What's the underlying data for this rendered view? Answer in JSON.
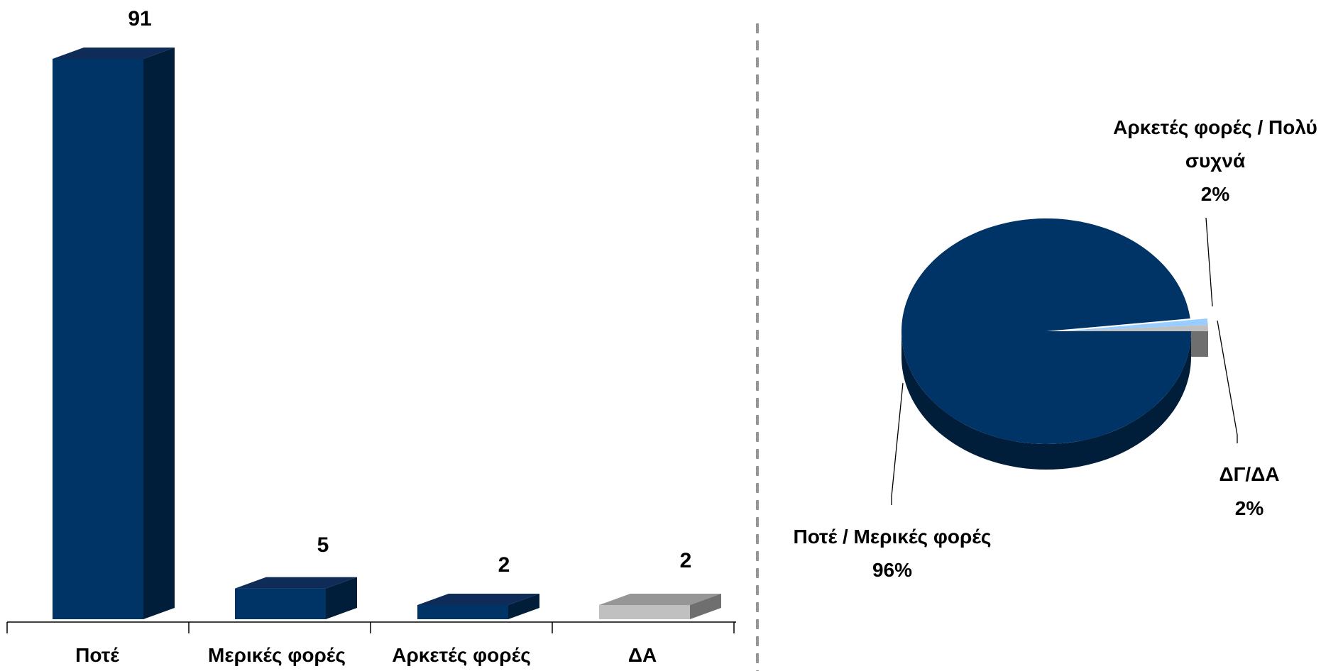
{
  "colors": {
    "navy": "#003366",
    "navy_top": "#0f2c58",
    "navy_side": "#001d3a",
    "gray": "#c0c0c0",
    "gray_top": "#969696",
    "gray_side": "#6f6f6f",
    "light_blue": "#99ccff",
    "divider": "#969696"
  },
  "chart_data": [
    {
      "type": "bar",
      "categories": [
        "Ποτέ",
        "Μερικές φορές",
        "Αρκετές φορές",
        "ΔΑ"
      ],
      "values": [
        91,
        5,
        2,
        2
      ],
      "data_labels": [
        "91",
        "5",
        "2",
        "2"
      ],
      "bar_colors": [
        "navy",
        "navy",
        "navy",
        "gray"
      ],
      "ylim": [
        0,
        91
      ],
      "grid": false,
      "three_d": true
    },
    {
      "type": "pie",
      "three_d": true,
      "slices": [
        {
          "label": "Ποτέ / Μερικές φορές",
          "value": 96,
          "text": "Ποτέ / Μερικές φορές",
          "pct": "96%",
          "color": "navy"
        },
        {
          "label": "Αρκετές φορές / Πολύ συχνά",
          "value": 2,
          "text_lines": [
            "Αρκετές φορές / Πολύ",
            "συχνά"
          ],
          "pct": "2%",
          "color": "light_blue"
        },
        {
          "label": "ΔΓ/ΔΑ",
          "value": 2,
          "text": "ΔΓ/ΔΑ",
          "pct": "2%",
          "color": "gray"
        }
      ]
    }
  ]
}
